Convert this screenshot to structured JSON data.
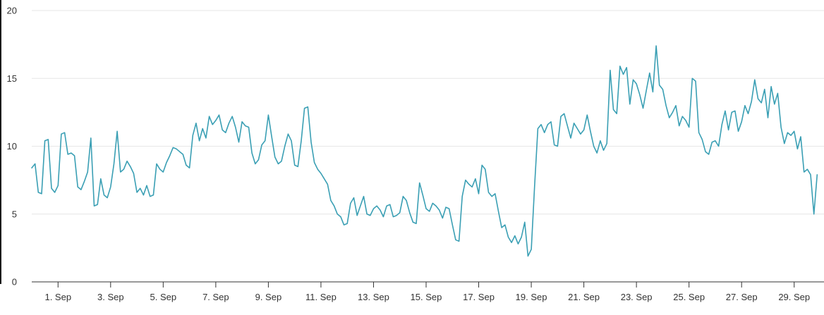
{
  "chart_data": {
    "type": "line",
    "title": "",
    "xlabel": "",
    "ylabel": "",
    "legend": "none",
    "grid": "horizontal",
    "ylim": [
      0,
      20
    ],
    "x_range_days": [
      0,
      30
    ],
    "points_per_day": 8,
    "y_ticks": [
      0,
      5,
      10,
      15,
      20
    ],
    "x_tick_days": [
      1,
      3,
      5,
      7,
      9,
      11,
      13,
      15,
      17,
      19,
      21,
      23,
      25,
      27,
      29
    ],
    "x_tick_labels": [
      "1. Sep",
      "3. Sep",
      "5. Sep",
      "7. Sep",
      "9. Sep",
      "11. Sep",
      "13. Sep",
      "15. Sep",
      "17. Sep",
      "19. Sep",
      "21. Sep",
      "23. Sep",
      "25. Sep",
      "27. Sep",
      "29. Sep"
    ],
    "line_color": "#3a9fb4",
    "grid_color": "#e6e6e6",
    "axis_color": "#333333",
    "label_color": "#333333",
    "values": [
      8.4,
      8.7,
      6.6,
      6.5,
      10.4,
      10.5,
      6.9,
      6.6,
      7.1,
      10.9,
      11.0,
      9.4,
      9.5,
      9.3,
      7.0,
      6.8,
      7.4,
      8.1,
      10.6,
      5.6,
      5.7,
      7.6,
      6.4,
      6.2,
      7.0,
      8.7,
      11.1,
      8.1,
      8.3,
      8.9,
      8.5,
      8.0,
      6.6,
      6.9,
      6.4,
      7.1,
      6.3,
      6.4,
      8.7,
      8.3,
      8.1,
      8.8,
      9.3,
      9.9,
      9.8,
      9.6,
      9.4,
      8.6,
      8.4,
      10.8,
      11.7,
      10.4,
      11.3,
      10.6,
      12.2,
      11.6,
      11.9,
      12.3,
      11.2,
      11.0,
      11.7,
      12.2,
      11.4,
      10.3,
      11.8,
      11.5,
      11.4,
      9.5,
      8.7,
      9.0,
      10.1,
      10.4,
      12.3,
      10.7,
      9.2,
      8.7,
      8.9,
      10.0,
      10.9,
      10.4,
      8.6,
      8.5,
      10.4,
      12.8,
      12.9,
      10.3,
      8.8,
      8.3,
      8.0,
      7.6,
      7.2,
      6.0,
      5.6,
      5.0,
      4.8,
      4.2,
      4.3,
      5.8,
      6.2,
      4.9,
      5.6,
      6.3,
      5.0,
      4.9,
      5.4,
      5.6,
      5.3,
      4.8,
      5.6,
      5.7,
      4.8,
      4.9,
      5.1,
      6.3,
      6.0,
      5.1,
      4.4,
      4.3,
      7.3,
      6.4,
      5.4,
      5.2,
      5.8,
      5.6,
      5.3,
      4.7,
      5.5,
      5.4,
      4.2,
      3.1,
      3.0,
      6.3,
      7.5,
      7.2,
      7.0,
      7.6,
      6.5,
      8.6,
      8.3,
      6.6,
      6.3,
      6.5,
      5.2,
      4.0,
      4.2,
      3.3,
      2.9,
      3.4,
      2.8,
      3.3,
      4.4,
      1.9,
      2.4,
      7.0,
      11.3,
      11.6,
      11.0,
      11.6,
      11.8,
      10.1,
      10.0,
      12.2,
      12.4,
      11.5,
      10.6,
      11.7,
      11.3,
      10.9,
      11.2,
      12.3,
      11.1,
      10.0,
      9.5,
      10.4,
      9.7,
      10.2,
      15.6,
      12.7,
      12.4,
      15.9,
      15.3,
      15.8,
      13.1,
      14.9,
      14.6,
      13.8,
      12.8,
      14.1,
      15.4,
      14.0,
      17.4,
      14.5,
      14.2,
      13.0,
      12.1,
      12.5,
      13.0,
      11.5,
      12.2,
      11.9,
      11.4,
      15.0,
      14.8,
      11.0,
      10.5,
      9.6,
      9.4,
      10.3,
      10.4,
      10.0,
      11.6,
      12.6,
      11.2,
      12.5,
      12.6,
      11.1,
      11.8,
      13.0,
      12.4,
      13.3,
      14.9,
      13.5,
      13.2,
      14.2,
      12.1,
      14.4,
      13.1,
      13.9,
      11.4,
      10.2,
      11.0,
      10.8,
      11.1,
      9.8,
      10.7,
      8.1,
      8.3,
      7.9,
      5.0,
      7.9
    ]
  }
}
